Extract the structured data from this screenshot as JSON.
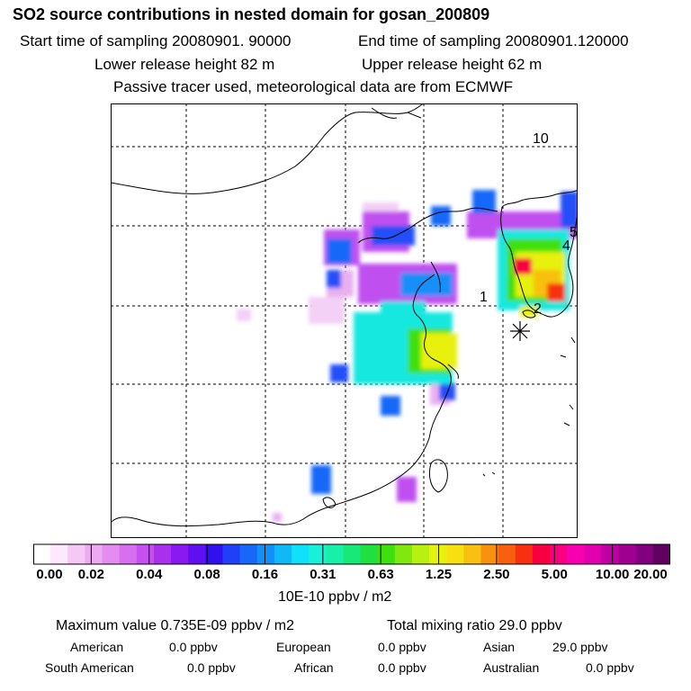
{
  "header": {
    "title": "SO2 source contributions in nested domain for gosan_200809",
    "start": "Start time of sampling 20080901. 90000",
    "end": "End time of sampling 20080901.120000",
    "lower": "Lower release height   82 m",
    "upper": "Upper release height   62 m",
    "tracer": "Passive tracer used, meteorological data are from ECMWF"
  },
  "map": {
    "receptor_labels": [
      "10",
      "5",
      "4",
      "1",
      "2"
    ]
  },
  "chart_data": {
    "type": "heatmap",
    "title": "SO2 source contributions in nested domain for gosan_200809",
    "colorbar": {
      "units": "10E-10 ppbv / m2",
      "tick_labels": [
        "0.00",
        "0.02",
        "0.04",
        "0.08",
        "0.16",
        "0.31",
        "0.63",
        "1.25",
        "2.50",
        "5.00",
        "10.00",
        "20.00"
      ],
      "tick_values": [
        0.0,
        0.02,
        0.04,
        0.08,
        0.16,
        0.31,
        0.63,
        1.25,
        2.5,
        5.0,
        10.0,
        20.0
      ],
      "colors": [
        "#ffffff",
        "#fde8fd",
        "#f5c8f5",
        "#eeaaf0",
        "#e58cf0",
        "#d86ef0",
        "#c550f0",
        "#aa30f0",
        "#8a18f0",
        "#6010f0",
        "#3010ee",
        "#2040f8",
        "#1868f8",
        "#1090f8",
        "#10b8f8",
        "#10e0f8",
        "#18f0d8",
        "#18f0a8",
        "#18e878",
        "#20e040",
        "#40e010",
        "#80e810",
        "#b8f010",
        "#e8f010",
        "#f8e010",
        "#f8c010",
        "#f89010",
        "#f86010",
        "#f83010",
        "#f80040",
        "#f80080",
        "#f800b0",
        "#e000b0",
        "#c000a0",
        "#a00090",
        "#800080",
        "#600060"
      ]
    }
  },
  "footer": {
    "maximum": "Maximum value  0.735E-09 ppbv / m2",
    "total": "Total mixing ratio       29.0 ppbv",
    "american_label": "American",
    "american_value": "0.0 ppbv",
    "european_label": "European",
    "european_value": "0.0 ppbv",
    "asian_label": "Asian",
    "asian_value": "29.0 ppbv",
    "south_american_label": "South American",
    "south_american_value": "0.0 ppbv",
    "african_label": "African",
    "african_value": "0.0 ppbv",
    "australian_label": "Australian",
    "australian_value": "0.0 ppbv"
  }
}
